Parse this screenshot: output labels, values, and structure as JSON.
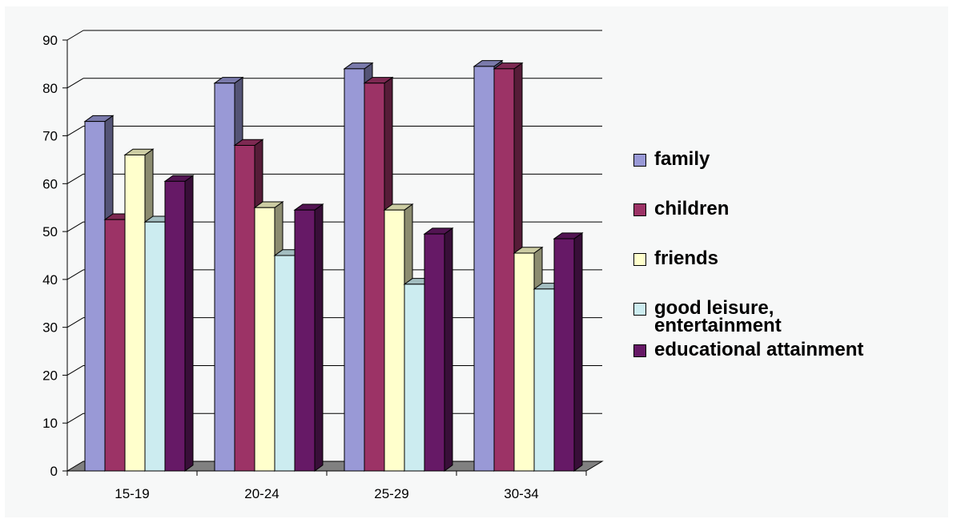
{
  "chart_data": {
    "type": "bar",
    "title": "",
    "xlabel": "",
    "ylabel": "",
    "ylim": [
      0,
      90
    ],
    "yticks": [
      0,
      10,
      20,
      30,
      40,
      50,
      60,
      70,
      80,
      90
    ],
    "categories": [
      "15-19",
      "20-24",
      "25-29",
      "30-34"
    ],
    "grid": true,
    "legend_position": "right",
    "style": "3d-clustered-column",
    "series": [
      {
        "name": "family",
        "values": [
          73,
          81,
          84,
          84.5
        ],
        "color": "#9999d6"
      },
      {
        "name": "children",
        "values": [
          52.5,
          68,
          81,
          84
        ],
        "color": "#9c3366"
      },
      {
        "name": "friends",
        "values": [
          66,
          55,
          54.5,
          45.5
        ],
        "color": "#ffffcc"
      },
      {
        "name": "good leisure,\nentertainment",
        "values": [
          52,
          45,
          39,
          38
        ],
        "color": "#ccecf0"
      },
      {
        "name": "educational attainment",
        "values": [
          60.5,
          54.5,
          49.5,
          48.5
        ],
        "color": "#661966"
      }
    ]
  }
}
